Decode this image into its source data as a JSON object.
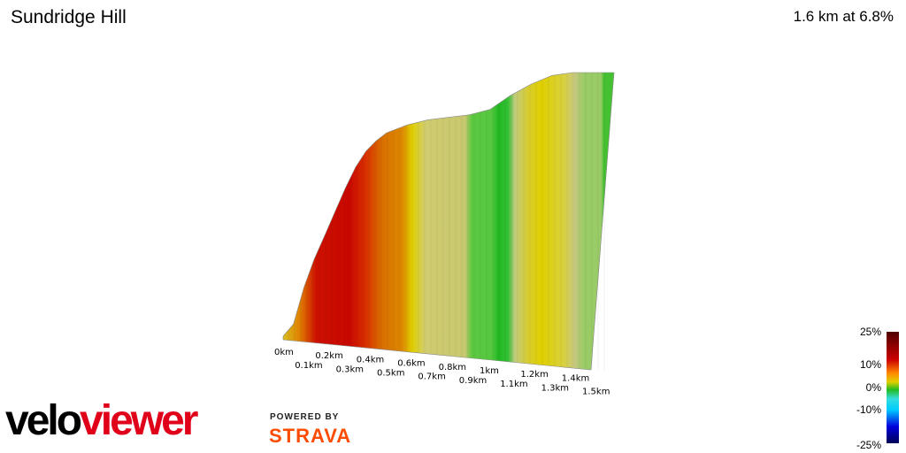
{
  "title": "Sundridge Hill",
  "summary": "1.6 km at 6.8%",
  "chart_data": {
    "type": "area",
    "title": "Sundridge Hill",
    "x_ticks": [
      "0km",
      "0.1km",
      "0.2km",
      "0.3km",
      "0.4km",
      "0.5km",
      "0.6km",
      "0.7km",
      "0.8km",
      "0.9km",
      "1km",
      "1.1km",
      "1.2km",
      "1.3km",
      "1.4km",
      "1.5km"
    ],
    "distance_km": [
      0,
      0.05,
      0.1,
      0.15,
      0.2,
      0.25,
      0.3,
      0.35,
      0.4,
      0.45,
      0.5,
      0.6,
      0.7,
      0.8,
      0.9,
      1.0,
      1.1,
      1.2,
      1.3,
      1.4,
      1.5,
      1.6
    ],
    "relative_elevation": [
      0,
      0.05,
      0.19,
      0.3,
      0.39,
      0.48,
      0.57,
      0.65,
      0.71,
      0.75,
      0.78,
      0.81,
      0.83,
      0.84,
      0.85,
      0.87,
      0.92,
      0.96,
      0.99,
      1.0,
      1.0,
      1.0
    ],
    "color_scale": {
      "labels": [
        "25%",
        "10%",
        "0%",
        "-10%",
        "-25%"
      ],
      "colors": [
        "#500000",
        "#cc0000",
        "#ff8800",
        "#e0d000",
        "#cccc77",
        "#22bb22",
        "#33dddd",
        "#00ccff",
        "#0000dd",
        "#000055"
      ]
    }
  },
  "branding": {
    "logo_velo": "velo",
    "logo_viewer": "viewer",
    "powered_by": "POWERED BY",
    "strava": "STRAVA"
  }
}
